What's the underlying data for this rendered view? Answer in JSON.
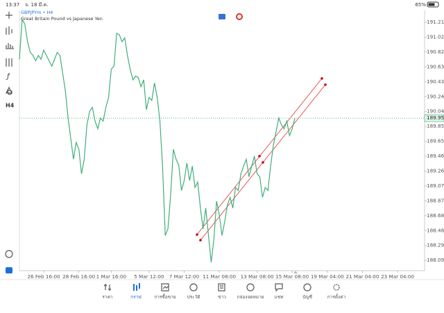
{
  "status_bar": {
    "time": "13:37",
    "date": "จ. 18 มี.ค.",
    "battery": "65%"
  },
  "symbol": {
    "ticker": "GBPJPYm • H4",
    "description": "Great Britain Pound vs Japanese Yen"
  },
  "toolbar": {
    "timeframe": "H4"
  },
  "chart_data": {
    "type": "line",
    "color": "#3fae7a",
    "values": [
      190.73,
      191.25,
      191.19,
      190.96,
      190.82,
      190.78,
      190.71,
      190.78,
      190.73,
      190.85,
      190.78,
      190.71,
      190.64,
      190.73,
      190.82,
      190.78,
      190.55,
      190.32,
      189.96,
      189.69,
      189.42,
      189.64,
      189.55,
      189.23,
      189.42,
      189.87,
      190.05,
      190.1,
      189.92,
      189.82,
      189.96,
      189.92,
      190.1,
      190.23,
      190.6,
      190.64,
      191.07,
      191.05,
      190.96,
      191.01,
      190.78,
      190.6,
      190.46,
      190.51,
      190.49,
      190.37,
      190.46,
      190.07,
      190.23,
      190.19,
      190.42,
      190.23,
      189.92,
      189.33,
      188.42,
      188.51,
      188.96,
      189.55,
      189.42,
      189.34,
      189.01,
      189.14,
      189.37,
      189.14,
      189.33,
      189.05,
      189.12,
      188.78,
      188.51,
      188.78,
      188.42,
      188.07,
      188.37,
      188.87,
      188.69,
      188.42,
      188.6,
      188.82,
      188.92,
      188.78,
      189.05,
      189.01,
      189.23,
      189.33,
      189.42,
      189.19,
      189.33,
      189.46,
      189.23,
      189.19,
      188.92,
      189.05,
      189.01,
      189.33,
      189.6,
      189.78,
      189.96,
      189.87,
      189.82,
      189.92,
      189.73,
      189.82,
      189.96
    ],
    "ylim": [
      187.96,
      191.37
    ],
    "yticks": [
      191.215,
      {
        "value": 191.02,
        "label": "191.020"
      },
      190.825,
      {
        "value": 190.63,
        "label": "190.630"
      },
      190.435,
      {
        "value": 190.24,
        "label": "190.240"
      },
      190.045,
      {
        "value": 189.85,
        "label": "189.850"
      },
      189.655,
      {
        "value": 189.46,
        "label": "189.460"
      },
      189.265,
      {
        "value": 189.07,
        "label": "189.070"
      },
      188.875,
      {
        "value": 188.68,
        "label": "188.680"
      },
      188.485,
      {
        "value": 188.29,
        "label": "188.290"
      },
      188.095
    ],
    "xlim": [
      0,
      150
    ],
    "xticks": [
      {
        "value": 9,
        "label": "26 Feb 16:00"
      },
      {
        "value": 22,
        "label": "28 Feb 16:00"
      },
      {
        "value": 34,
        "label": "1 Mar 16:00"
      },
      {
        "value": 48,
        "label": "5 Mar 12:00"
      },
      {
        "value": 61,
        "label": "7 Mar 12:00"
      },
      {
        "value": 74,
        "label": "11 Mar 08:00"
      },
      {
        "value": 88,
        "label": "13 Mar 08:00"
      },
      {
        "value": 101,
        "label": "15 Mar 08:00"
      },
      {
        "value": 114,
        "label": "19 Mar 04:00"
      },
      {
        "value": 127,
        "label": "21 Mar 04:00"
      },
      {
        "value": 140,
        "label": "23 Mar 04:00"
      }
    ],
    "current_price": 189.959
  },
  "nav": [
    "ราคา",
    "กราฟ",
    "การซื้อขาย",
    "ประวัติ",
    "ข่าว",
    "กล่องจดหมาย",
    "แชท",
    "บัญชี",
    "การตั้งค่า"
  ]
}
